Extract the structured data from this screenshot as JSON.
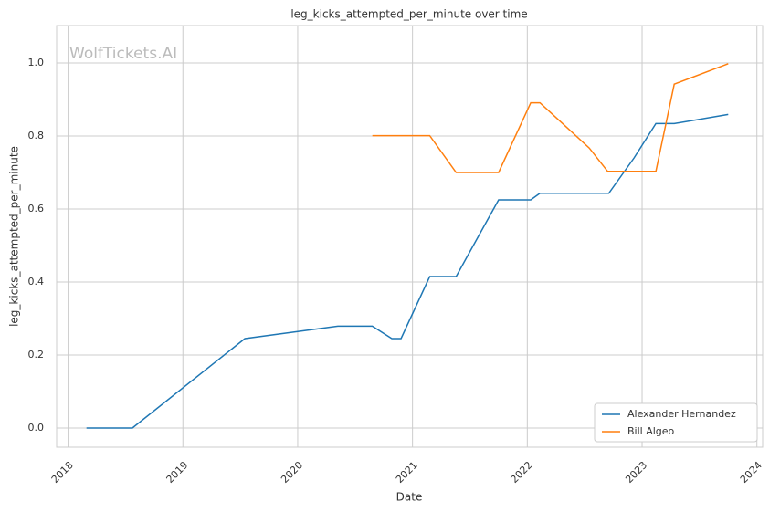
{
  "chart_data": {
    "type": "line",
    "title": "leg_kicks_attempted_per_minute over time",
    "x_label": "Date",
    "y_label": "leg_kicks_attempted_per_minute",
    "watermark": "WolfTickets.AI",
    "xlim": [
      2017.9,
      2024.05
    ],
    "xticks": [
      2018,
      2019,
      2020,
      2021,
      2022,
      2023,
      2024
    ],
    "ylim": [
      -0.0525,
      1.1025
    ],
    "yticks": [
      {
        "value": 0,
        "label": "0.0"
      },
      {
        "value": 0.2,
        "label": "0.2"
      },
      {
        "value": 0.4,
        "label": "0.4"
      },
      {
        "value": 0.6,
        "label": "0.6"
      },
      {
        "value": 0.8,
        "label": "0.8"
      },
      {
        "value": 1,
        "label": "1.0"
      }
    ],
    "grid": true,
    "legend": "lower right",
    "series": [
      {
        "name": "Alexander Hernandez",
        "color": "#1f77b4",
        "x": [
          2018.16,
          2018.56,
          2019.54,
          2020.35,
          2020.65,
          2020.82,
          2020.9,
          2021.15,
          2021.38,
          2021.75,
          2022.03,
          2022.11,
          2022.71,
          2022.93,
          2023.12,
          2023.28,
          2023.75
        ],
        "values": [
          0,
          0,
          0.245,
          0.279,
          0.279,
          0.245,
          0.245,
          0.415,
          0.415,
          0.625,
          0.625,
          0.643,
          0.643,
          0.74,
          0.834,
          0.834,
          0.859
        ]
      },
      {
        "name": "Bill Algeo",
        "color": "#ff7f0e",
        "x": [
          2020.65,
          2021.15,
          2021.38,
          2021.75,
          2022.03,
          2022.11,
          2022.54,
          2022.7,
          2023.12,
          2023.28,
          2023.75
        ],
        "values": [
          0.801,
          0.801,
          0.7,
          0.7,
          0.891,
          0.891,
          0.767,
          0.703,
          0.703,
          0.942,
          0.998
        ]
      }
    ]
  }
}
